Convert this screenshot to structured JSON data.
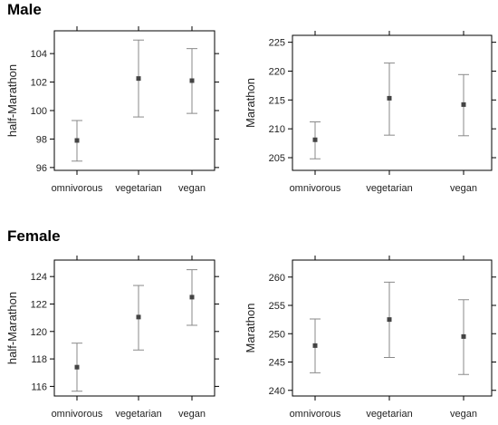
{
  "sections": [
    {
      "title": "Male"
    },
    {
      "title": "Female"
    }
  ],
  "chart_data": [
    {
      "type": "errorbar",
      "section": "Male",
      "categories": [
        "omnivorous",
        "vegetarian",
        "vegan"
      ],
      "xlabel": "",
      "ylabel": "half-Marathon",
      "ylim": [
        95.8,
        105.6
      ],
      "yticks": [
        96,
        98,
        100,
        102,
        104
      ],
      "mean": [
        97.9,
        102.25,
        102.1
      ],
      "lower": [
        96.45,
        99.55,
        99.8
      ],
      "upper": [
        99.3,
        104.95,
        104.35
      ],
      "grid": false
    },
    {
      "type": "errorbar",
      "section": "Male",
      "categories": [
        "omnivorous",
        "vegetarian",
        "vegan"
      ],
      "xlabel": "",
      "ylabel": "Marathon",
      "ylim": [
        202.8,
        226.2
      ],
      "yticks": [
        205,
        210,
        215,
        220,
        225
      ],
      "mean": [
        208.1,
        215.3,
        214.2
      ],
      "lower": [
        204.8,
        208.9,
        208.8
      ],
      "upper": [
        211.2,
        221.4,
        219.4
      ],
      "grid": false
    },
    {
      "type": "errorbar",
      "section": "Female",
      "categories": [
        "omnivorous",
        "vegetarian",
        "vegan"
      ],
      "xlabel": "",
      "ylabel": "half-Marathon",
      "ylim": [
        115.3,
        125.2
      ],
      "yticks": [
        116,
        118,
        120,
        122,
        124
      ],
      "mean": [
        117.4,
        121.05,
        122.5
      ],
      "lower": [
        115.65,
        118.65,
        120.45
      ],
      "upper": [
        119.15,
        123.35,
        124.5
      ],
      "grid": false
    },
    {
      "type": "errorbar",
      "section": "Female",
      "categories": [
        "omnivorous",
        "vegetarian",
        "vegan"
      ],
      "xlabel": "",
      "ylabel": "Marathon",
      "ylim": [
        239,
        263
      ],
      "yticks": [
        240,
        245,
        250,
        255,
        260
      ],
      "mean": [
        247.9,
        252.5,
        249.5
      ],
      "lower": [
        243.1,
        245.8,
        242.8
      ],
      "upper": [
        252.6,
        259.1,
        256
      ],
      "grid": false
    }
  ]
}
